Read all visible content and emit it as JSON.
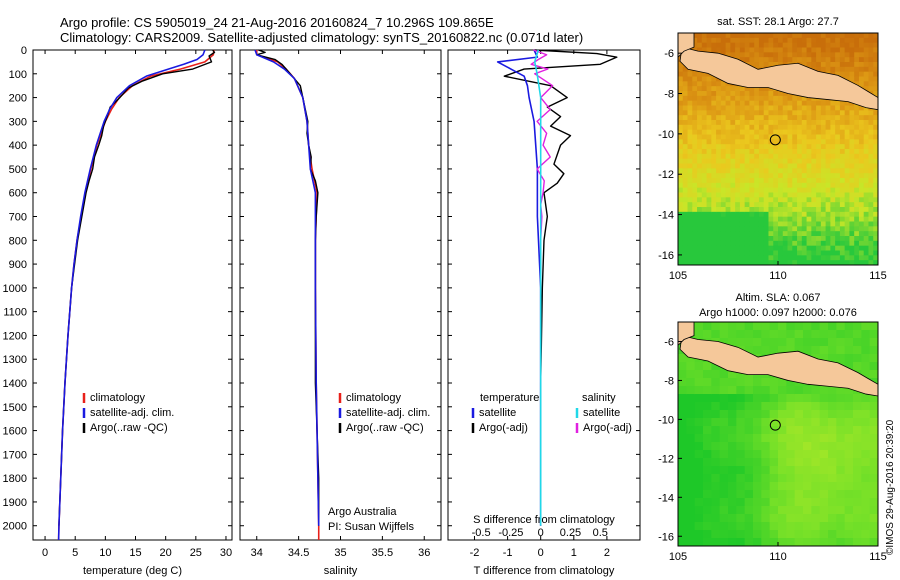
{
  "title": {
    "line1": "Argo profile: CS 5905019_24 21-Aug-2016 20160824_7 10.296S 109.865E",
    "line2": "Climatology: CARS2009. Satellite-adjusted climatology: synTS_20160822.nc (0.071d later)"
  },
  "depth_ticks": [
    "0",
    "100",
    "200",
    "300",
    "400",
    "500",
    "600",
    "700",
    "800",
    "900",
    "1000",
    "1100",
    "1200",
    "1300",
    "1400",
    "1500",
    "1600",
    "1700",
    "1800",
    "1900",
    "2000"
  ],
  "colors": {
    "climatology": "#e8201a",
    "satellite": "#1a1ae0",
    "argo": "#000000",
    "sal_sat": "#20d8e8",
    "sal_argo": "#e020e0",
    "land": "#f5c89a"
  },
  "chart_data": [
    {
      "type": "line",
      "panel": "temperature",
      "xlabel": "temperature (deg C)",
      "xlim": [
        -2,
        31
      ],
      "ylim": [
        2060,
        0
      ],
      "xticks": [
        "0",
        "5",
        "10",
        "15",
        "20",
        "25",
        "30"
      ],
      "legend": [
        "climatology",
        "satellite-adj. clim.",
        "Argo(..raw -QC)"
      ],
      "series": [
        {
          "name": "climatology",
          "depth": [
            0,
            20,
            50,
            80,
            110,
            150,
            200,
            250,
            300,
            400,
            500,
            600,
            700,
            800,
            900,
            1000,
            1200,
            1400,
            1600,
            1800,
            2000,
            2060
          ],
          "values": [
            28,
            27.9,
            26.5,
            22.5,
            17.5,
            14.5,
            12.3,
            11,
            10,
            8.6,
            7.6,
            6.7,
            6,
            5.3,
            4.8,
            4.4,
            3.8,
            3.3,
            2.9,
            2.6,
            2.3,
            2.25
          ]
        },
        {
          "name": "satellite-adj. clim.",
          "depth": [
            0,
            20,
            40,
            60,
            80,
            110,
            150,
            200,
            250,
            300,
            400,
            500,
            600,
            700,
            800,
            900,
            1000,
            1200,
            1400,
            1600,
            1800,
            2000,
            2060
          ],
          "values": [
            26.5,
            26.2,
            25.2,
            23,
            20.5,
            16.8,
            14,
            11.9,
            10.7,
            9.8,
            8.5,
            7.5,
            6.6,
            5.9,
            5.3,
            4.8,
            4.4,
            3.8,
            3.3,
            2.9,
            2.6,
            2.3,
            2.25
          ]
        },
        {
          "name": "Argo(..raw -QC)",
          "depth": [
            0,
            10,
            25,
            50,
            80,
            100,
            130,
            160,
            200,
            240,
            280,
            320,
            360,
            400,
            450,
            500,
            550,
            600,
            700,
            800,
            900,
            1000,
            1200,
            1400,
            1600,
            1800,
            2000
          ],
          "values": [
            27.8,
            28.1,
            27.2,
            27.6,
            24.5,
            19.5,
            16.2,
            13.8,
            12.4,
            10.8,
            10.3,
            9.7,
            9.4,
            8.9,
            8.2,
            7.9,
            7.3,
            6.8,
            6.1,
            5.4,
            4.9,
            4.4,
            3.8,
            3.3,
            2.9,
            2.6,
            2.3
          ]
        }
      ]
    },
    {
      "type": "line",
      "panel": "salinity",
      "xlabel": "salinity",
      "xlim": [
        33.8,
        36.2
      ],
      "ylim": [
        2060,
        0
      ],
      "xticks": [
        "34",
        "34.5",
        "35",
        "35.5",
        "36"
      ],
      "legend": [
        "climatology",
        "satellite-adj. clim.",
        "Argo(..raw -QC)"
      ],
      "annotation": [
        "Argo Australia",
        "PI: Susan Wijffels"
      ],
      "series": [
        {
          "name": "climatology",
          "depth": [
            0,
            20,
            50,
            80,
            120,
            200,
            300,
            400,
            500,
            600,
            800,
            1000,
            1400,
            1800,
            2000,
            2060
          ],
          "values": [
            34.0,
            34.0,
            34.25,
            34.35,
            34.45,
            34.55,
            34.6,
            34.62,
            34.66,
            34.72,
            34.7,
            34.7,
            34.71,
            34.73,
            34.74,
            34.74
          ]
        },
        {
          "name": "satellite-adj. clim.",
          "depth": [
            0,
            20,
            50,
            80,
            120,
            200,
            300,
            400,
            500,
            600,
            800,
            1000,
            1400,
            1800,
            2000
          ],
          "values": [
            33.98,
            34.0,
            34.2,
            34.33,
            34.45,
            34.55,
            34.6,
            34.62,
            34.64,
            34.7,
            34.7,
            34.7,
            34.71,
            34.73,
            34.74
          ]
        },
        {
          "name": "Argo(..raw -QC)",
          "depth": [
            0,
            10,
            20,
            40,
            60,
            100,
            150,
            200,
            250,
            300,
            350,
            400,
            450,
            500,
            550,
            600,
            650,
            700,
            800,
            900,
            1000,
            1200,
            1400,
            1600,
            1800,
            2000
          ],
          "values": [
            34.02,
            34.1,
            34.0,
            34.22,
            34.3,
            34.4,
            34.52,
            34.55,
            34.58,
            34.61,
            34.6,
            34.62,
            34.65,
            34.64,
            34.7,
            34.73,
            34.72,
            34.71,
            34.7,
            34.7,
            34.7,
            34.7,
            34.7,
            34.72,
            34.74,
            34.74
          ]
        }
      ]
    },
    {
      "type": "line",
      "panel": "difference",
      "xlabel": "T difference from climatology",
      "xlabel_top": "S difference from climatology",
      "xlim": [
        -2.8,
        3
      ],
      "ylim": [
        2060,
        0
      ],
      "xticks": [
        "-2",
        "-1",
        "0",
        "1",
        "2"
      ],
      "xticks_top": [
        "-0.5",
        "-0.25",
        "0",
        "0.25",
        "0.5"
      ],
      "legend_groups": [
        {
          "title": "temperature",
          "items": [
            "satellite",
            "Argo(-adj)"
          ]
        },
        {
          "title": "salinity",
          "items": [
            "satellite",
            "Argo(-adj)"
          ]
        }
      ],
      "series": [
        {
          "name": "temperature satellite",
          "depth": [
            0,
            30,
            50,
            80,
            110,
            150,
            200,
            300,
            500,
            700,
            1000,
            1400,
            1800,
            2000
          ],
          "values": [
            -0.2,
            -0.1,
            -1.3,
            -0.9,
            -0.5,
            -0.4,
            -0.35,
            -0.2,
            -0.1,
            -0.1,
            0,
            0,
            0,
            0
          ]
        },
        {
          "name": "temperature Argo(-adj)",
          "depth": [
            0,
            15,
            30,
            60,
            80,
            110,
            150,
            200,
            240,
            280,
            320,
            360,
            400,
            440,
            480,
            520,
            560,
            600,
            700,
            800,
            1000,
            1400,
            1800,
            2000
          ],
          "values": [
            -0.2,
            1.7,
            2.3,
            1.8,
            -0.5,
            -1.1,
            0.3,
            0.8,
            0.2,
            0.6,
            0.3,
            0.9,
            0.6,
            0.5,
            0.4,
            0.7,
            0.5,
            0.1,
            0.2,
            0.1,
            0.05,
            0.0,
            0.0,
            0.0
          ]
        },
        {
          "name": "salinity satellite",
          "depth": [
            0,
            50,
            100,
            200,
            300,
            400,
            500,
            600,
            800,
            1000,
            1400,
            1800,
            2000
          ],
          "values": [
            -0.02,
            -0.05,
            -0.03,
            0,
            0,
            0,
            0,
            0,
            0,
            0,
            0,
            0,
            0
          ]
        },
        {
          "name": "salinity Argo(-adj)",
          "depth": [
            0,
            20,
            40,
            60,
            80,
            100,
            150,
            200,
            250,
            300,
            350,
            400,
            450,
            500,
            550,
            600,
            650,
            700,
            800,
            1000,
            1400,
            1800,
            2000
          ],
          "values": [
            -0.06,
            0.05,
            -0.02,
            -0.08,
            0.06,
            -0.05,
            0.1,
            0.0,
            0.08,
            -0.03,
            0.05,
            0.02,
            0.08,
            -0.03,
            0.03,
            0.02,
            0.0,
            0.01,
            0.0,
            0.0,
            0.0,
            0.0,
            0.0
          ]
        }
      ]
    },
    {
      "type": "heatmap",
      "panel": "sat_sst",
      "title": "sat. SST: 28.1  Argo: 27.7",
      "xlim": [
        105,
        115
      ],
      "ylim": [
        -16.5,
        -5
      ],
      "xticks": [
        "105",
        "110",
        "115"
      ],
      "yticks": [
        "-6",
        "-8",
        "-10",
        "-12",
        "-14",
        "-16"
      ],
      "argo_position": {
        "lon": 109.865,
        "lat": -10.296
      }
    },
    {
      "type": "heatmap",
      "panel": "sla",
      "title_lines": [
        "Altim. SLA: 0.067",
        "Argo h1000: 0.097  h2000: 0.076"
      ],
      "xlim": [
        105,
        115
      ],
      "ylim": [
        -16.5,
        -5
      ],
      "xticks": [
        "105",
        "110",
        "115"
      ],
      "yticks": [
        "-6",
        "-8",
        "-10",
        "-12",
        "-14",
        "-16"
      ],
      "argo_position": {
        "lon": 109.865,
        "lat": -10.296
      }
    }
  ],
  "footer": {
    "credit": "©IMOS 29-Aug-2016 20:39:20"
  }
}
